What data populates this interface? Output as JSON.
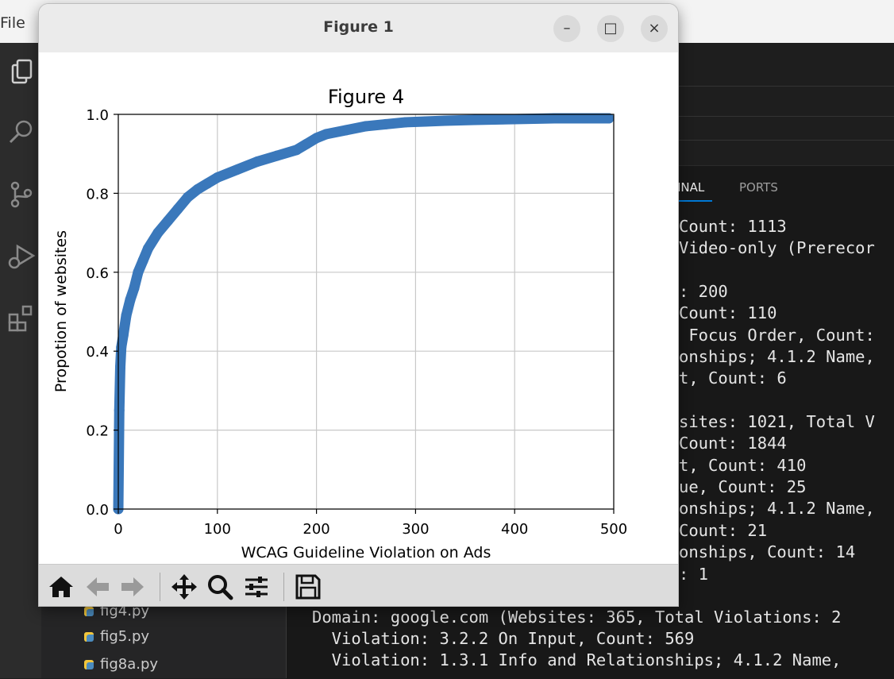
{
  "vscode": {
    "menu_file": "File",
    "panel_tabs": {
      "terminal": "INAL",
      "ports": "PORTS"
    },
    "terminal_lines": [
      "Count: 1113",
      "Video-only (Prerecor",
      ": 200",
      "Count: 110",
      " Focus Order, Count:",
      "onships; 4.1.2 Name,",
      "t, Count: 6",
      "sites: 1021, Total V",
      "Count: 1844",
      "t, Count: 410",
      "ue, Count: 25",
      "onships; 4.1.2 Name,",
      "Count: 21",
      "onships, Count: 14",
      ": 1"
    ],
    "terminal_full_lines": [
      "Domain: google.com (Websites: 365, Total Violations: 2",
      "  Violation: 3.2.2 On Input, Count: 569",
      "  Violation: 1.3.1 Info and Relationships; 4.1.2 Name,"
    ],
    "files": [
      "fig4.py",
      "fig5.py",
      "fig8a.py"
    ]
  },
  "window": {
    "title": "Figure 1",
    "buttons": {
      "minimize": "–",
      "maximize": "□",
      "close": "×"
    }
  },
  "chart_data": {
    "type": "scatter",
    "title": "Figure 4",
    "xlabel": "WCAG Guideline Violation on Ads",
    "ylabel": "Propotion of websites",
    "xlim": [
      0,
      500
    ],
    "ylim": [
      0,
      1.0
    ],
    "xticks": [
      "0",
      "100",
      "200",
      "300",
      "400",
      "500"
    ],
    "yticks": [
      "0.0",
      "0.2",
      "0.4",
      "0.6",
      "0.8",
      "1.0"
    ],
    "grid": true,
    "color": "#3a78bb",
    "curve": [
      [
        0,
        0.0
      ],
      [
        1,
        0.25
      ],
      [
        2,
        0.36
      ],
      [
        3,
        0.41
      ],
      [
        5,
        0.44
      ],
      [
        8,
        0.49
      ],
      [
        12,
        0.53
      ],
      [
        16,
        0.56
      ],
      [
        20,
        0.6
      ],
      [
        25,
        0.63
      ],
      [
        30,
        0.66
      ],
      [
        40,
        0.7
      ],
      [
        50,
        0.73
      ],
      [
        60,
        0.76
      ],
      [
        70,
        0.79
      ],
      [
        80,
        0.81
      ],
      [
        90,
        0.825
      ],
      [
        100,
        0.84
      ],
      [
        120,
        0.86
      ],
      [
        140,
        0.88
      ],
      [
        160,
        0.895
      ],
      [
        180,
        0.91
      ],
      [
        190,
        0.925
      ],
      [
        200,
        0.94
      ],
      [
        210,
        0.95
      ],
      [
        230,
        0.96
      ],
      [
        250,
        0.97
      ],
      [
        270,
        0.975
      ],
      [
        290,
        0.98
      ],
      [
        310,
        0.982
      ],
      [
        330,
        0.984
      ],
      [
        360,
        0.986
      ],
      [
        400,
        0.988
      ],
      [
        440,
        0.99
      ],
      [
        470,
        0.99
      ],
      [
        495,
        0.99
      ]
    ]
  }
}
